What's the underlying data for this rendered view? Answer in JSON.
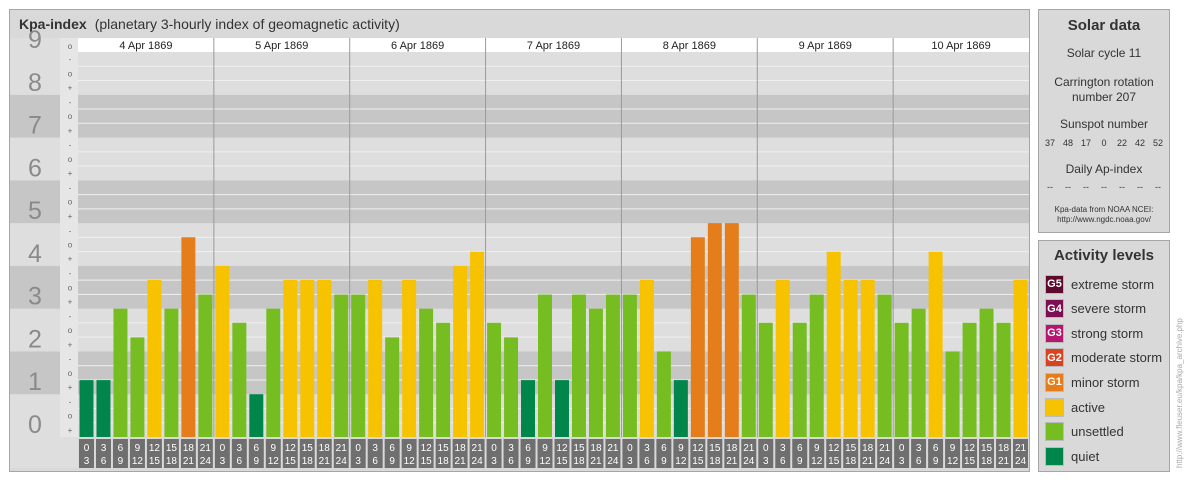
{
  "chart_title": {
    "name": "Kpa-index",
    "description": "(planetary 3-hourly index of geomagnetic activity)"
  },
  "solar": {
    "title": "Solar data",
    "cycle": "Solar cycle 11",
    "carrington_line1": "Carrington rotation",
    "carrington_line2": "number 207",
    "sunspot_label": "Sunspot number",
    "sunspots": [
      "37",
      "48",
      "17",
      "0",
      "22",
      "42",
      "52"
    ],
    "ap_label": "Daily Ap-index",
    "ap_values": [
      "--",
      "--",
      "--",
      "--",
      "--",
      "--",
      "--"
    ],
    "source_line1": "Kpa-data from NOAA NCEI:",
    "source_line2": "http://www.ngdc.noaa.gov/"
  },
  "legend": {
    "title": "Activity levels",
    "items": [
      {
        "badge": "G5",
        "label": "extreme storm",
        "color": "#5c0a2e"
      },
      {
        "badge": "G4",
        "label": "severe storm",
        "color": "#7d0e52"
      },
      {
        "badge": "G3",
        "label": "strong storm",
        "color": "#b5166e"
      },
      {
        "badge": "G2",
        "label": "moderate storm",
        "color": "#d94420"
      },
      {
        "badge": "G1",
        "label": "minor storm",
        "color": "#e57e1a"
      },
      {
        "badge": "",
        "label": "active",
        "color": "#f7c200"
      },
      {
        "badge": "",
        "label": "unsettled",
        "color": "#76bd22"
      },
      {
        "badge": "",
        "label": "quiet",
        "color": "#00854a"
      }
    ]
  },
  "credit": "http://www.fleuser.eu/kpa/kpa_archive.php",
  "chart_data": {
    "type": "bar",
    "ylim": [
      0,
      9
    ],
    "y_ticks": [
      "0",
      "1",
      "2",
      "3",
      "4",
      "5",
      "6",
      "7",
      "8",
      "9"
    ],
    "y_minor": [
      "+",
      "o",
      "-"
    ],
    "days": [
      "4 Apr 1869",
      "5 Apr 1869",
      "6 Apr 1869",
      "7 Apr 1869",
      "8 Apr 1869",
      "9 Apr 1869",
      "10 Apr 1869"
    ],
    "interval_start": [
      "0",
      "3",
      "6",
      "9",
      "12",
      "15",
      "18",
      "21"
    ],
    "interval_end": [
      "3",
      "6",
      "9",
      "12",
      "15",
      "18",
      "21",
      "24"
    ],
    "values": [
      [
        1.33,
        1.33,
        3.0,
        2.33,
        3.67,
        3.0,
        4.67,
        3.33
      ],
      [
        4.0,
        2.67,
        1.0,
        3.0,
        3.67,
        3.67,
        3.67,
        3.33
      ],
      [
        3.33,
        3.67,
        2.33,
        3.67,
        3.0,
        2.67,
        4.0,
        4.33
      ],
      [
        2.67,
        2.33,
        1.33,
        3.33,
        1.33,
        3.33,
        3.0,
        3.33
      ],
      [
        3.33,
        3.67,
        2.0,
        1.33,
        4.67,
        5.0,
        5.0,
        3.33
      ],
      [
        2.67,
        3.67,
        2.67,
        3.33,
        4.33,
        3.67,
        3.67,
        3.33
      ],
      [
        2.67,
        3.0,
        4.33,
        2.0,
        2.67,
        3.0,
        2.67,
        3.67
      ]
    ],
    "level_colors": {
      "quiet": "#00854a",
      "unsettled": "#76bd22",
      "active": "#f7c200",
      "minor_storm": "#e57e1a"
    },
    "band_colors": {
      "dark": "#c6c6c6",
      "light": "#dedede",
      "gridline": "#f0f0f0",
      "axis_cell": "#6f6f6f"
    }
  }
}
